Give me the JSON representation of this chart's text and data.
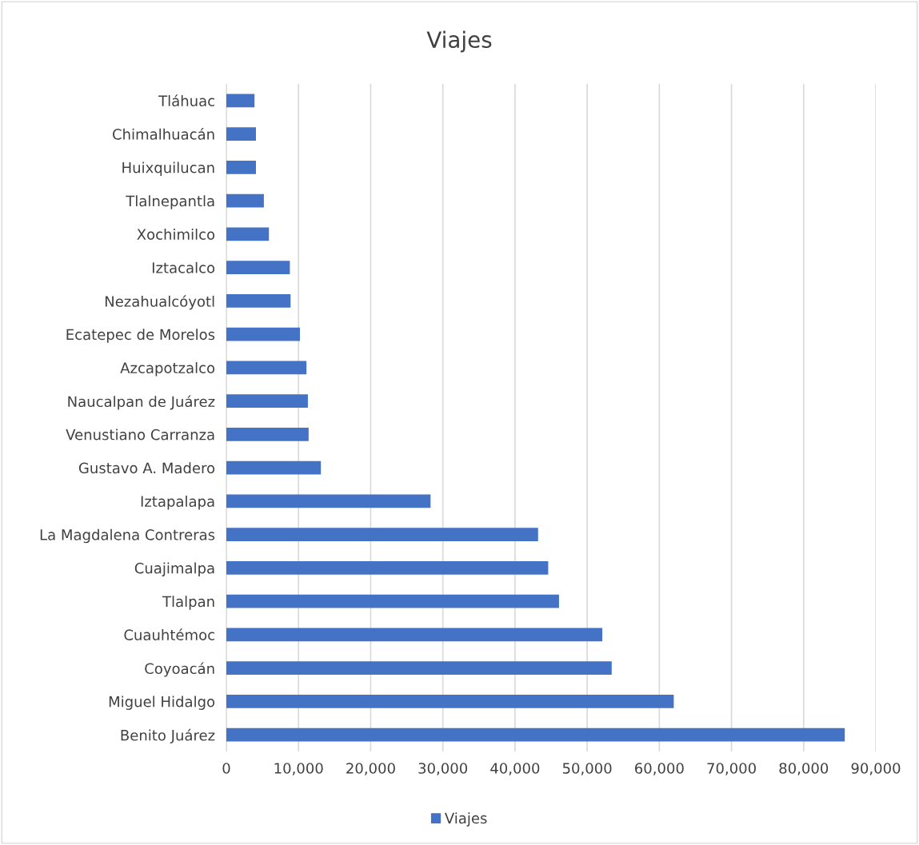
{
  "chart_data": {
    "type": "bar",
    "orientation": "horizontal",
    "title": "Viajes",
    "categories": [
      "Tláhuac",
      "Chimalhuacán",
      "Huixquilucan",
      "Tlalnepantla",
      "Xochimilco",
      "Iztacalco",
      "Nezahualcóyotl",
      "Ecatepec de Morelos",
      "Azcapotzalco",
      "Naucalpan de Juárez",
      "Venustiano Carranza",
      "Gustavo A. Madero",
      "Iztapalapa",
      "La Magdalena Contreras",
      "Cuajimalpa",
      "Tlalpan",
      "Cuauhtémoc",
      "Coyoacán",
      "Miguel Hidalgo",
      "Benito Juárez"
    ],
    "series": [
      {
        "name": "Viajes",
        "color": "#4472c4",
        "values": [
          3900,
          4100,
          4100,
          5200,
          5900,
          8800,
          8900,
          10200,
          11100,
          11300,
          11400,
          13100,
          28300,
          43200,
          44600,
          46100,
          52100,
          53400,
          62000,
          85700
        ]
      }
    ],
    "xlim": [
      0,
      90000
    ],
    "xticks": [
      {
        "value": 0,
        "label": "0"
      },
      {
        "value": 10000,
        "label": "10,000"
      },
      {
        "value": 20000,
        "label": "20,000"
      },
      {
        "value": 30000,
        "label": "30,000"
      },
      {
        "value": 40000,
        "label": "40,000"
      },
      {
        "value": 50000,
        "label": "50,000"
      },
      {
        "value": 60000,
        "label": "60,000"
      },
      {
        "value": 70000,
        "label": "70,000"
      },
      {
        "value": 80000,
        "label": "80,000"
      },
      {
        "value": 90000,
        "label": "90,000"
      }
    ],
    "grid": "x",
    "legend": "bottom"
  }
}
